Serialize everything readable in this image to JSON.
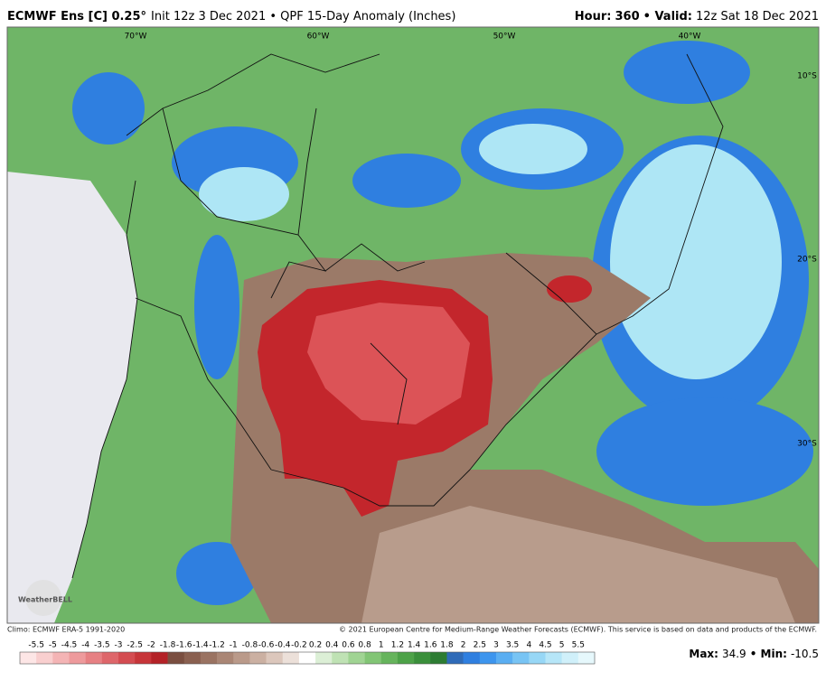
{
  "header": {
    "model": "ECMWF Ens [C] 0.25°",
    "info": "Init 12z 3 Dec 2021 • QPF 15-Day Anomaly (Inches)",
    "hour_label": "Hour:",
    "hour": "360",
    "valid_label": "• Valid:",
    "valid": "12z Sat 18 Dec 2021"
  },
  "map": {
    "lon_labels": [
      "70°W",
      "60°W",
      "50°W",
      "40°W"
    ],
    "lat_labels": [
      "10°S",
      "20°S",
      "30°S"
    ],
    "logo": "WeatherBELL"
  },
  "footer": {
    "climo": "Climo: ECMWF ERA-5 1991-2020",
    "copyright": "© 2021 European Centre for Medium-Range Weather Forecasts (ECMWF). This service is based on data and products of the ECMWF."
  },
  "legend": {
    "ticks": [
      -5.5,
      -5,
      -4.5,
      -4,
      -3.5,
      -3,
      -2.5,
      -2,
      -1.8,
      -1.6,
      -1.4,
      -1.2,
      -1,
      -0.8,
      -0.6,
      -0.4,
      -0.2,
      0.2,
      0.4,
      0.6,
      0.8,
      1,
      1.2,
      1.4,
      1.6,
      1.8,
      2,
      2.5,
      3,
      3.5,
      4,
      4.5,
      5,
      5.5
    ],
    "colors": [
      "#fde6e6",
      "#f9cfcf",
      "#f4b4b5",
      "#ee9a9c",
      "#e78083",
      "#de666a",
      "#d44c51",
      "#c73539",
      "#b42227",
      "#7a4e40",
      "#8a6050",
      "#9a7362",
      "#aa8675",
      "#ba9a8a",
      "#cbb0a2",
      "#dcc7bc",
      "#ece0d9",
      "#ffffff",
      "#dcefd6",
      "#bfe2b4",
      "#a0d493",
      "#82c575",
      "#66b45c",
      "#4da248",
      "#3a8f3b",
      "#2d7c33",
      "#2f6bb8",
      "#2f7fe0",
      "#3d95ee",
      "#5aaef2",
      "#78c4f4",
      "#97d7f6",
      "#b6e6f8",
      "#d0f0fa",
      "#e6f8fc"
    ],
    "max_label": "Max:",
    "max": 34.9,
    "min_label": "• Min:",
    "min": -10.5
  }
}
